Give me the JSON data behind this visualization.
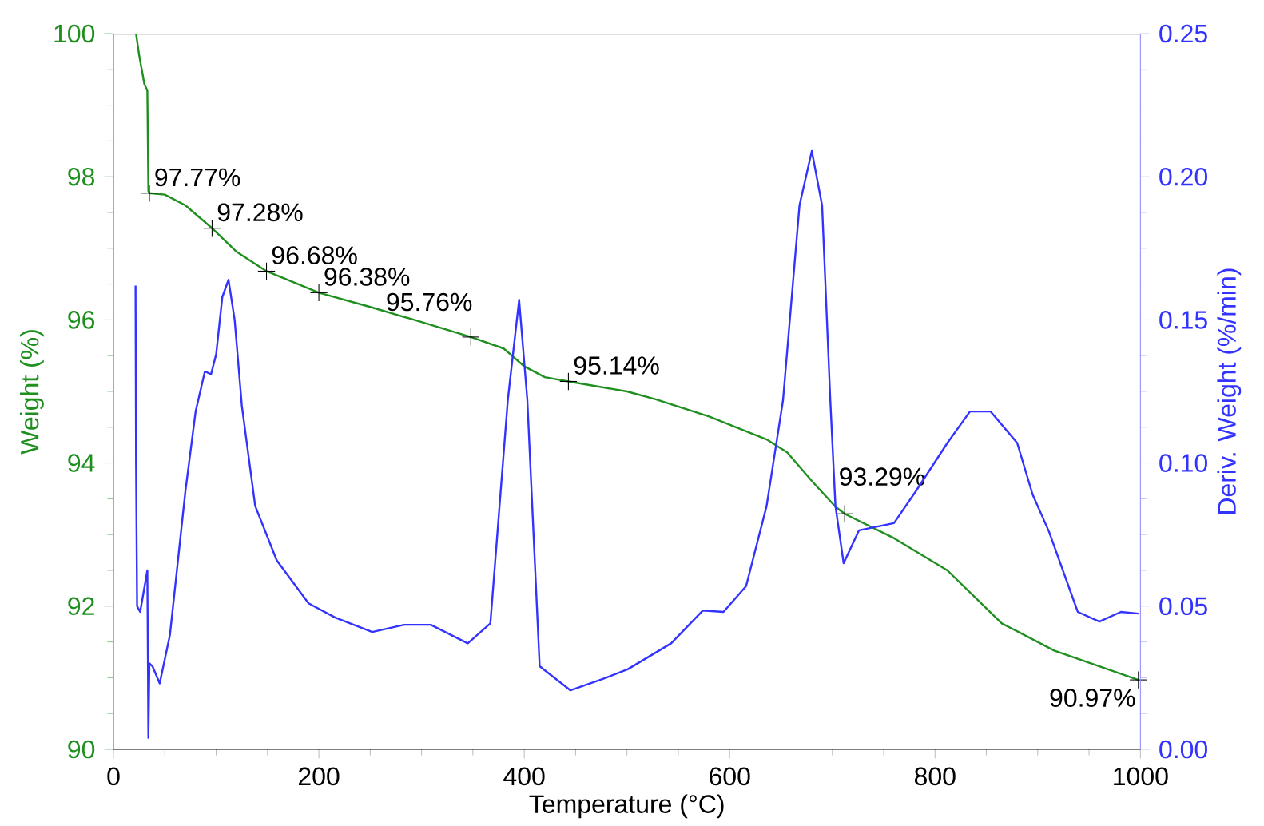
{
  "chart_data": {
    "type": "line",
    "xlabel": "Temperature (°C)",
    "ylabel": "Weight (%)",
    "y2label": "Deriv. Weight (%/min)",
    "xlim": [
      0,
      1000
    ],
    "xticks": [
      0,
      200,
      400,
      600,
      800,
      1000
    ],
    "ylim": [
      90,
      100
    ],
    "yticks": [
      90,
      92,
      94,
      96,
      98,
      100
    ],
    "y2lim": [
      0,
      0.25
    ],
    "y2ticks": [
      {
        "value": 0,
        "label": "0.00"
      },
      {
        "value": 0.05,
        "label": "0.05"
      },
      {
        "value": 0.1,
        "label": "0.10"
      },
      {
        "value": 0.15,
        "label": "0.15"
      },
      {
        "value": 0.2,
        "label": "0.20"
      },
      {
        "value": 0.25,
        "label": "0.25"
      }
    ],
    "series": [
      {
        "color": "#1f8f1f",
        "x": [
          22,
          25,
          30,
          33,
          34,
          35,
          50,
          70,
          96,
          120,
          149,
          200,
          250,
          300,
          348,
          380,
          400,
          420,
          443,
          500,
          528,
          580,
          636,
          656,
          680,
          703,
          712,
          760,
          812,
          865,
          916,
          998
        ],
        "values": [
          100,
          99.7,
          99.3,
          99.2,
          97.8,
          97.77,
          97.75,
          97.6,
          97.28,
          96.95,
          96.68,
          96.38,
          96.18,
          95.97,
          95.76,
          95.6,
          95.35,
          95.2,
          95.14,
          95.0,
          94.89,
          94.65,
          94.33,
          94.15,
          93.75,
          93.39,
          93.29,
          92.95,
          92.5,
          91.76,
          91.38,
          90.97
        ]
      },
      {
        "color": "#3333ff",
        "axis": "y2",
        "x": [
          21.5,
          22,
          23,
          26,
          33,
          34,
          35,
          38,
          45,
          55,
          70,
          80,
          89,
          95,
          100,
          106,
          112,
          118,
          125,
          138,
          159,
          190,
          216,
          252,
          283,
          309,
          345,
          367,
          384,
          395,
          403,
          415,
          445,
          476,
          501,
          543,
          574,
          594,
          616,
          636,
          652,
          668,
          680,
          690,
          698,
          703,
          711,
          726,
          760,
          781,
          812,
          834,
          854,
          880,
          895,
          911,
          939,
          960,
          981,
          998
        ],
        "values": [
          0.162,
          0.1,
          0.05,
          0.048,
          0.0625,
          0.004,
          0.03,
          0.029,
          0.023,
          0.04,
          0.09,
          0.118,
          0.132,
          0.131,
          0.138,
          0.158,
          0.164,
          0.15,
          0.12,
          0.085,
          0.066,
          0.051,
          0.046,
          0.041,
          0.0435,
          0.0435,
          0.037,
          0.044,
          0.122,
          0.157,
          0.122,
          0.029,
          0.0206,
          0.0245,
          0.028,
          0.037,
          0.0485,
          0.048,
          0.057,
          0.085,
          0.122,
          0.19,
          0.209,
          0.19,
          0.122,
          0.085,
          0.065,
          0.0765,
          0.079,
          0.09,
          0.107,
          0.118,
          0.118,
          0.107,
          0.089,
          0.076,
          0.048,
          0.0446,
          0.048,
          0.0474
        ]
      }
    ],
    "annotations": [
      {
        "text": "97.77%",
        "x": 35,
        "y": 97.77
      },
      {
        "text": "97.28%",
        "x": 96,
        "y": 97.28
      },
      {
        "text": "96.68%",
        "x": 149,
        "y": 96.68
      },
      {
        "text": "96.38%",
        "x": 200,
        "y": 96.38
      },
      {
        "text": "95.76%",
        "x": 348,
        "y": 95.76
      },
      {
        "text": "95.14%",
        "x": 443,
        "y": 95.14
      },
      {
        "text": "93.29%",
        "x": 712,
        "y": 93.29
      },
      {
        "text": "90.97%",
        "x": 998,
        "y": 90.97
      }
    ]
  }
}
